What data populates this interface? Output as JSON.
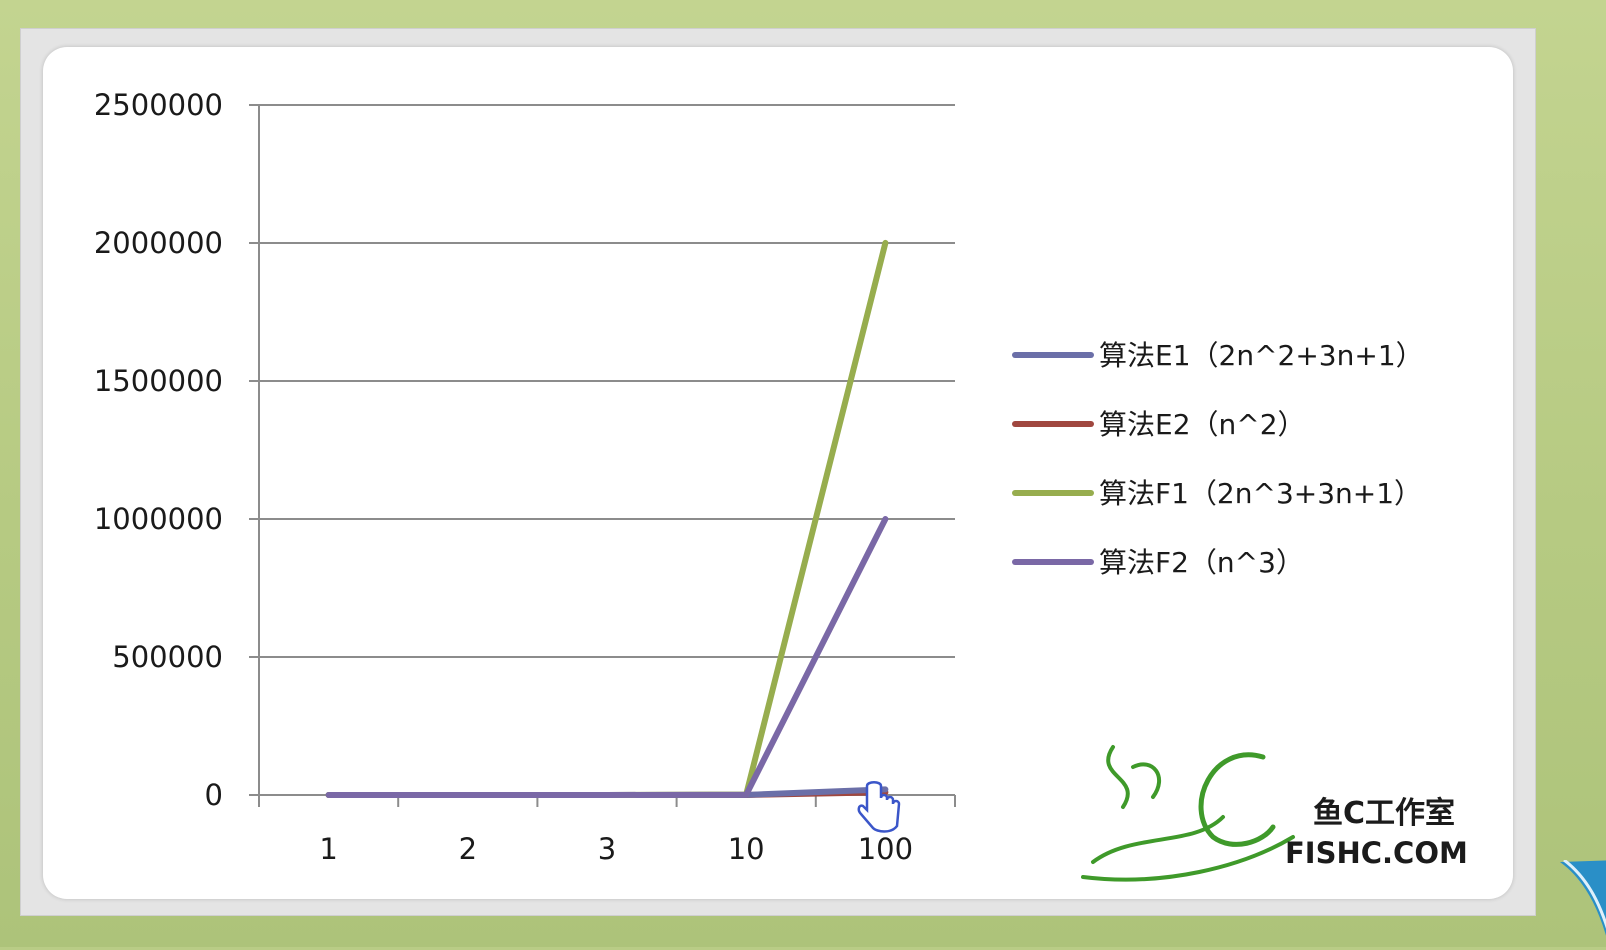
{
  "chart_data": {
    "type": "line",
    "categories": [
      "1",
      "2",
      "3",
      "10",
      "100"
    ],
    "ylim": [
      0,
      2500000
    ],
    "yticks": [
      "0",
      "500000",
      "1000000",
      "1500000",
      "2000000",
      "2500000"
    ],
    "grid": "horizontal",
    "legend_position": "right",
    "series": [
      {
        "name": "算法E1（2n^2+3n+1）",
        "color": "#6b6fa8",
        "values": [
          6,
          15,
          28,
          231,
          20301
        ]
      },
      {
        "name": "算法E2（n^2）",
        "color": "#a0473f",
        "values": [
          1,
          4,
          9,
          100,
          10000
        ]
      },
      {
        "name": "算法F1（2n^3+3n+1）",
        "color": "#97ad4e",
        "values": [
          6,
          23,
          64,
          2031,
          2000301
        ]
      },
      {
        "name": "算法F2（n^3）",
        "color": "#7a68a6",
        "values": [
          1,
          8,
          27,
          1000,
          1000000
        ]
      }
    ]
  },
  "watermark": {
    "logo_text": "鱼C工作室",
    "site": "FISHC.COM",
    "logo_color": "#3f9a2a",
    "icon": "fishc-script-logo"
  },
  "cursor": {
    "icon": "hand-pointer-cursor-icon"
  }
}
